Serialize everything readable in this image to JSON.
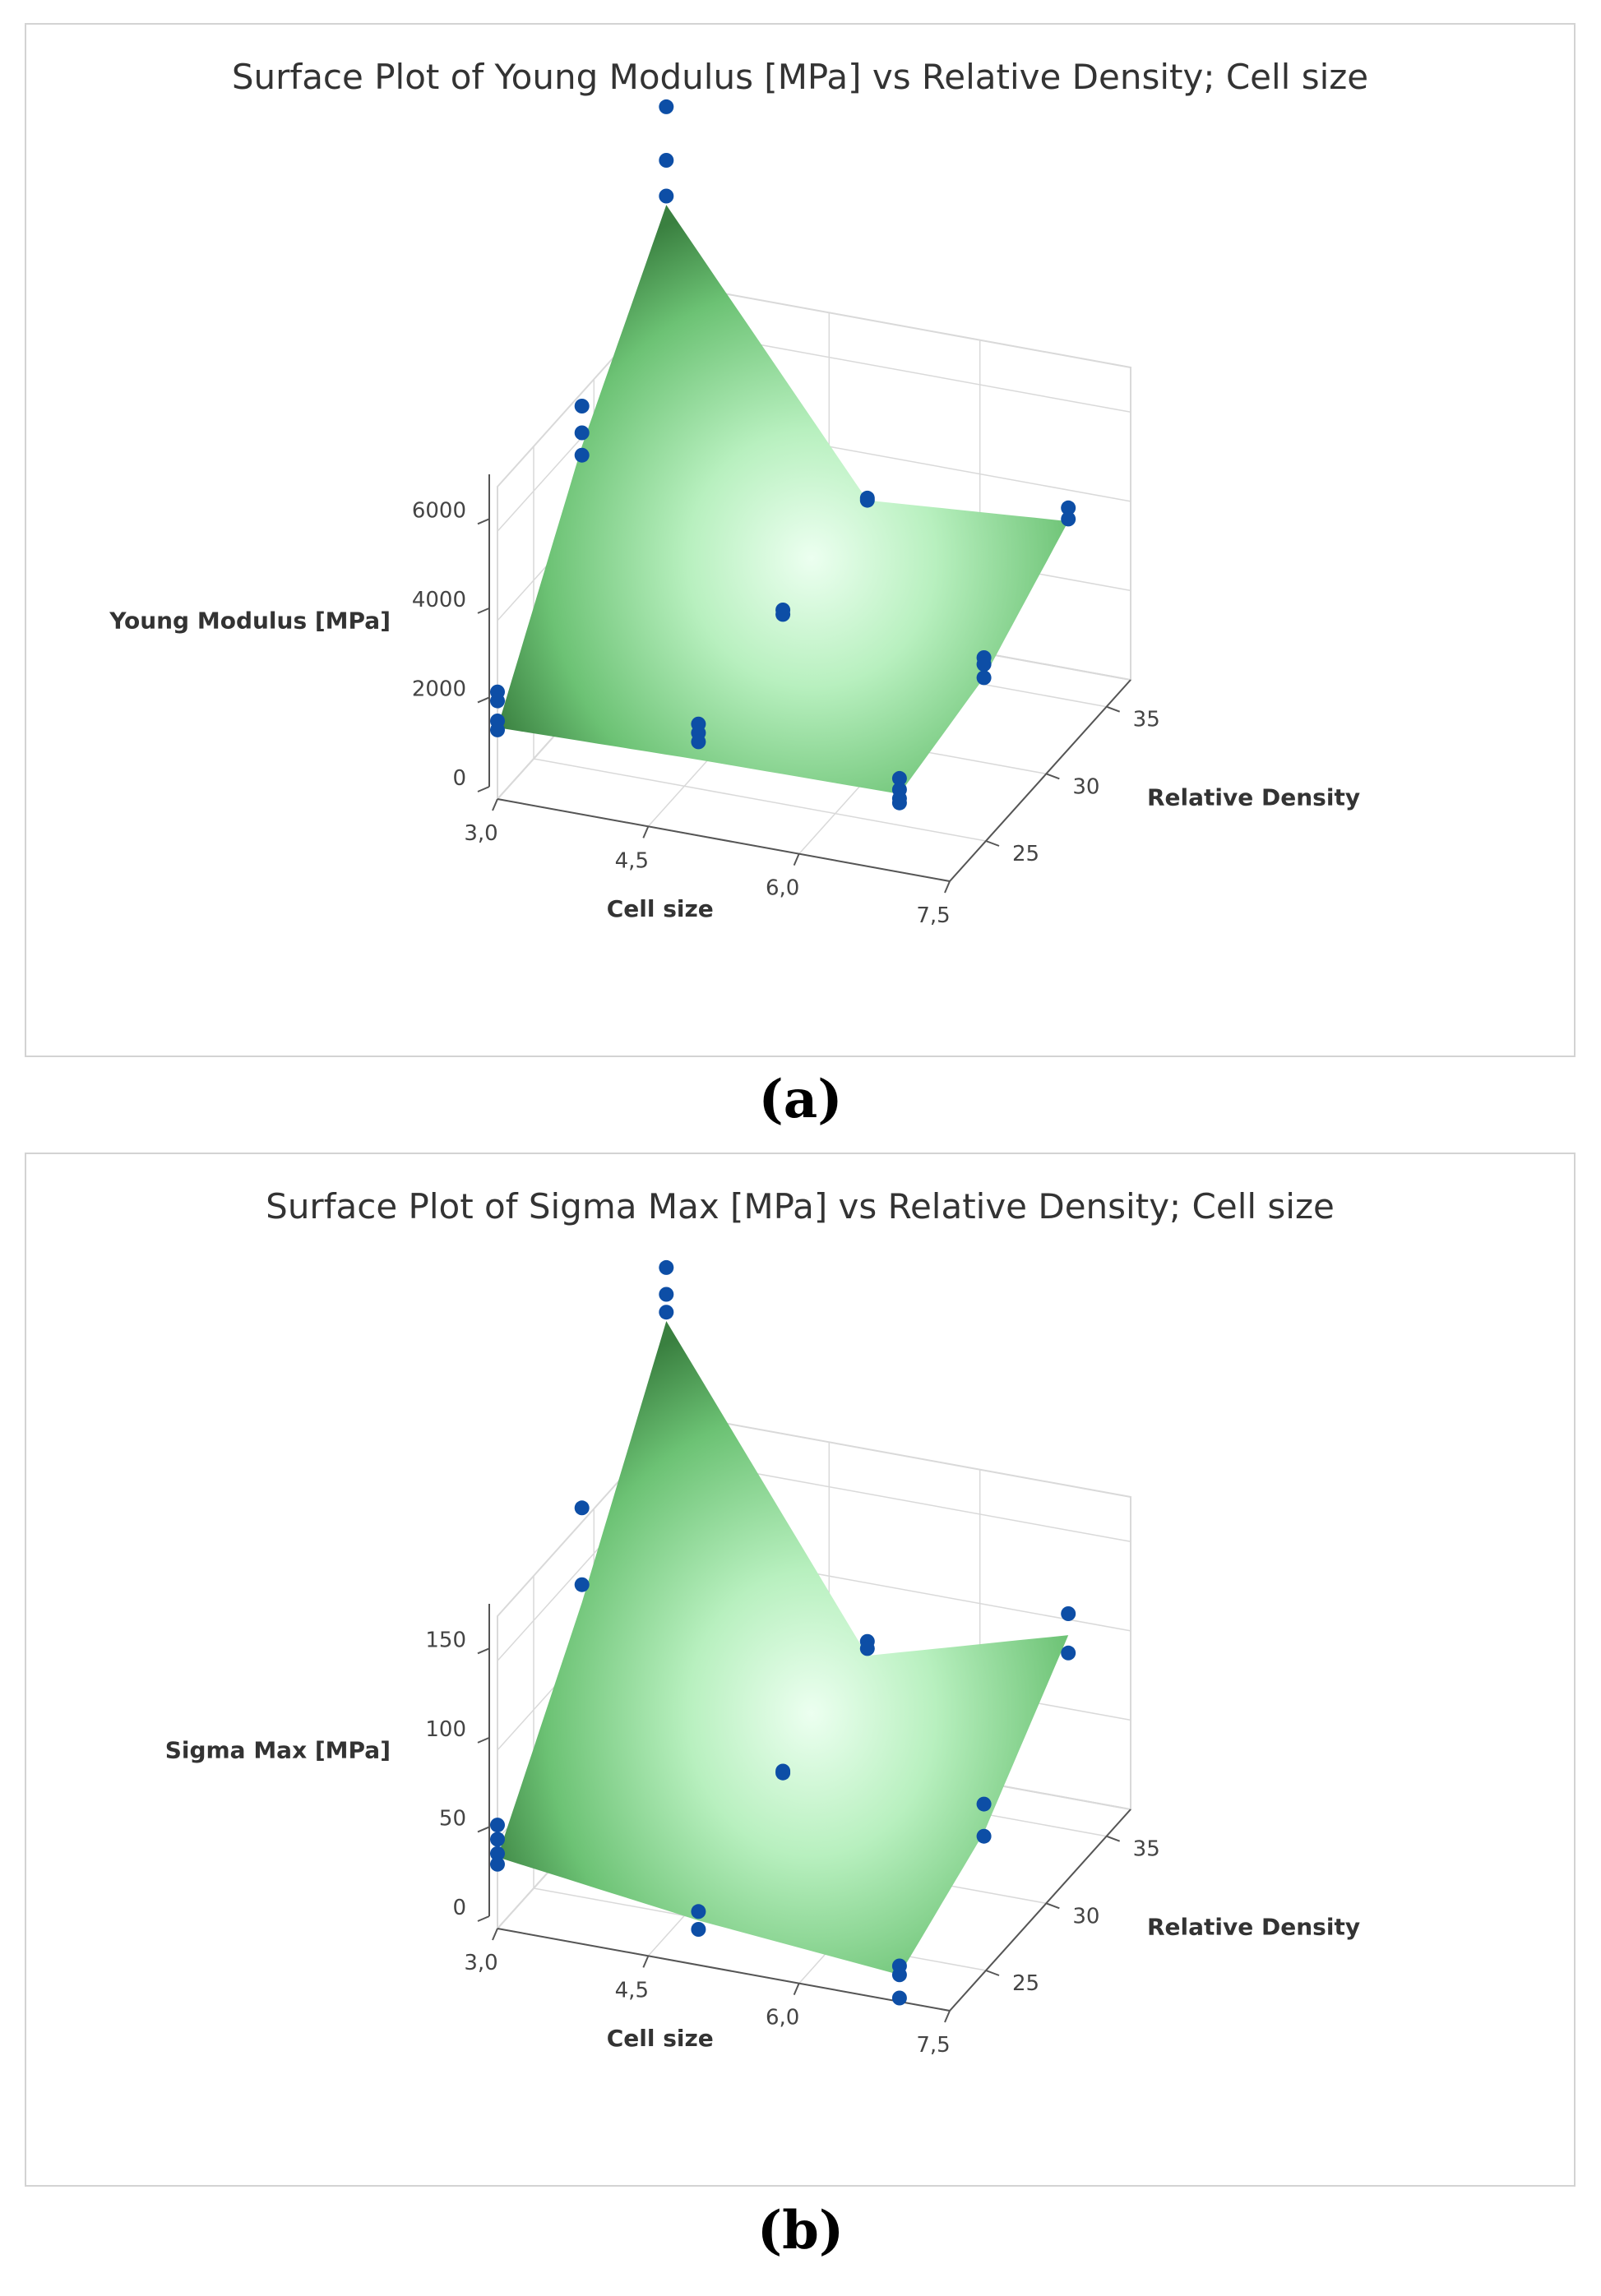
{
  "chart_data": [
    {
      "type": "surface",
      "title": "Surface Plot of Young Modulus [MPa] vs Relative Density; Cell size",
      "xlabel": "Cell size",
      "ylabel": "Relative Density",
      "zlabel": "Young Modulus [MPa]",
      "x_ticks": [
        "3,0",
        "4,5",
        "6,0",
        "7,5"
      ],
      "y_ticks": [
        "25",
        "30",
        "35"
      ],
      "z_ticks": [
        "0",
        "2000",
        "4000",
        "6000"
      ],
      "xlim": [
        3,
        7.5
      ],
      "ylim": [
        22,
        37
      ],
      "zlim": [
        0,
        7000
      ],
      "grid_x": [
        3,
        5,
        7
      ],
      "grid_y": [
        22,
        29,
        36
      ],
      "surface": [
        [
          1600,
          5800,
          9100
        ],
        [
          1700,
          2900,
          3300
        ],
        [
          1750,
          2250,
          3650
        ]
      ],
      "points": [
        {
          "x": 3,
          "y": 22,
          "z": 2400
        },
        {
          "x": 3,
          "y": 22,
          "z": 2200
        },
        {
          "x": 3,
          "y": 22,
          "z": 1750
        },
        {
          "x": 3,
          "y": 22,
          "z": 1550
        },
        {
          "x": 3,
          "y": 29,
          "z": 6700
        },
        {
          "x": 3,
          "y": 29,
          "z": 6100
        },
        {
          "x": 3,
          "y": 29,
          "z": 5600
        },
        {
          "x": 3,
          "y": 36,
          "z": 11300
        },
        {
          "x": 3,
          "y": 36,
          "z": 10100
        },
        {
          "x": 3,
          "y": 36,
          "z": 9300
        },
        {
          "x": 5,
          "y": 22,
          "z": 2500
        },
        {
          "x": 5,
          "y": 22,
          "z": 2300
        },
        {
          "x": 5,
          "y": 22,
          "z": 2100
        },
        {
          "x": 5,
          "y": 29,
          "z": 2950
        },
        {
          "x": 5,
          "y": 29,
          "z": 2850
        },
        {
          "x": 5,
          "y": 36,
          "z": 3350
        },
        {
          "x": 5,
          "y": 36,
          "z": 3300
        },
        {
          "x": 7,
          "y": 22,
          "z": 2100
        },
        {
          "x": 7,
          "y": 22,
          "z": 1850
        },
        {
          "x": 7,
          "y": 22,
          "z": 1650
        },
        {
          "x": 7,
          "y": 22,
          "z": 1550
        },
        {
          "x": 7,
          "y": 29,
          "z": 2700
        },
        {
          "x": 7,
          "y": 29,
          "z": 2550
        },
        {
          "x": 7,
          "y": 29,
          "z": 2250
        },
        {
          "x": 7,
          "y": 36,
          "z": 3950
        },
        {
          "x": 7,
          "y": 36,
          "z": 3700
        }
      ]
    },
    {
      "type": "surface",
      "title": "Surface Plot of Sigma Max [MPa] vs Relative Density; Cell size",
      "xlabel": "Cell size",
      "ylabel": "Relative Density",
      "zlabel": "Sigma Max [MPa]",
      "x_ticks": [
        "3,0",
        "4,5",
        "6,0",
        "7,5"
      ],
      "y_ticks": [
        "25",
        "30",
        "35"
      ],
      "z_ticks": [
        "0",
        "50",
        "100",
        "150"
      ],
      "xlim": [
        3,
        7.5
      ],
      "ylim": [
        22,
        37
      ],
      "zlim": [
        0,
        175
      ],
      "grid_x": [
        3,
        5,
        7
      ],
      "grid_y": [
        22,
        29,
        36
      ],
      "surface": [
        [
          40,
          130,
          235
        ],
        [
          25,
          55,
          68
        ],
        [
          15,
          42,
          100
        ]
      ],
      "points": [
        {
          "x": 3,
          "y": 22,
          "z": 58
        },
        {
          "x": 3,
          "y": 22,
          "z": 50
        },
        {
          "x": 3,
          "y": 22,
          "z": 42
        },
        {
          "x": 3,
          "y": 22,
          "z": 36
        },
        {
          "x": 3,
          "y": 29,
          "z": 183
        },
        {
          "x": 3,
          "y": 29,
          "z": 140
        },
        {
          "x": 3,
          "y": 36,
          "z": 265
        },
        {
          "x": 3,
          "y": 36,
          "z": 250
        },
        {
          "x": 3,
          "y": 36,
          "z": 240
        },
        {
          "x": 5,
          "y": 22,
          "z": 30
        },
        {
          "x": 5,
          "y": 22,
          "z": 20
        },
        {
          "x": 5,
          "y": 29,
          "z": 56
        },
        {
          "x": 5,
          "y": 29,
          "z": 55
        },
        {
          "x": 5,
          "y": 36,
          "z": 76
        },
        {
          "x": 5,
          "y": 36,
          "z": 72
        },
        {
          "x": 7,
          "y": 22,
          "z": 20
        },
        {
          "x": 7,
          "y": 22,
          "z": 15
        },
        {
          "x": 7,
          "y": 22,
          "z": 2
        },
        {
          "x": 7,
          "y": 29,
          "z": 58
        },
        {
          "x": 7,
          "y": 29,
          "z": 40
        },
        {
          "x": 7,
          "y": 36,
          "z": 112
        },
        {
          "x": 7,
          "y": 36,
          "z": 90
        }
      ]
    }
  ],
  "captions": [
    "(a)",
    "(b)"
  ],
  "colors": {
    "point": "#0d4ea6",
    "surface_dark": "#3a8040",
    "surface_light": "#ecfff0",
    "grid": "#d9d9d9",
    "axis": "#555555"
  }
}
